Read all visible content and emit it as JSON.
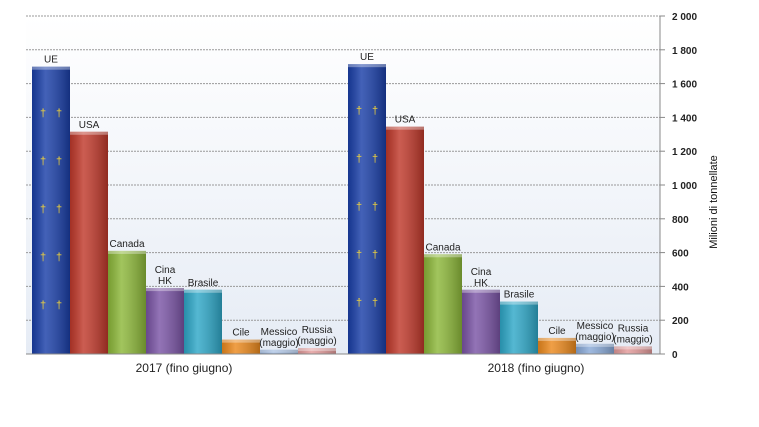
{
  "chart_data": {
    "type": "bar",
    "categories": [
      "2017 (fino giugno)",
      "2018 (fino giugno)"
    ],
    "ylabel": "Milioni di tonnellate",
    "ylim": [
      0,
      2000
    ],
    "yticks": [
      0,
      200,
      400,
      600,
      800,
      1000,
      1200,
      1400,
      1600,
      1800,
      2000
    ],
    "ytick_labels": [
      "0",
      "200",
      "400",
      "600",
      "800",
      "1 000",
      "1 200",
      "1 400",
      "1 600",
      "1 800",
      "2 000"
    ],
    "y_axis_position": "right",
    "grid": true,
    "series": [
      {
        "name": "UE",
        "label_lines": [
          "UE"
        ],
        "color": "#1a3fa8",
        "values": [
          1700,
          1715
        ]
      },
      {
        "name": "USA",
        "label_lines": [
          "USA"
        ],
        "color": "#c0392b",
        "values": [
          1315,
          1345
        ]
      },
      {
        "name": "Canada",
        "label_lines": [
          "Canada"
        ],
        "color": "#8db83a",
        "values": [
          610,
          590
        ]
      },
      {
        "name": "Cina HK",
        "label_lines": [
          "Cina",
          "HK"
        ],
        "color": "#7b55a6",
        "values": [
          390,
          380
        ]
      },
      {
        "name": "Brasile",
        "label_lines": [
          "Brasile"
        ],
        "color": "#2fa8c8",
        "values": [
          380,
          310
        ]
      },
      {
        "name": "Cile",
        "label_lines": [
          "Cile"
        ],
        "color": "#ec8a1e",
        "values": [
          85,
          95
        ]
      },
      {
        "name": "Messico (maggio)",
        "label_lines": [
          "Messico",
          "(maggio)"
        ],
        "color": "#8aaad8",
        "values": [
          25,
          60
        ]
      },
      {
        "name": "Russia (maggio)",
        "label_lines": [
          "Russia",
          "(maggio)"
        ],
        "color": "#e39a9a",
        "values": [
          35,
          45
        ]
      }
    ]
  }
}
